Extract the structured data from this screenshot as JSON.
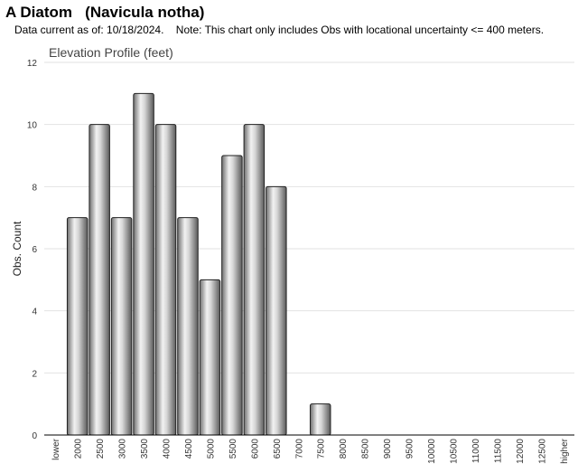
{
  "header": {
    "title": "A Diatom   (Navicula notha)",
    "subtitle": "Data current as of: 10/18/2024.    Note: This chart only includes Obs with locational uncertainty <= 400 meters."
  },
  "chart_data": {
    "type": "bar",
    "title": "Elevation Profile (feet)",
    "xlabel": "",
    "ylabel": "Obs. Count",
    "ylim": [
      0,
      12
    ],
    "yticks": [
      0,
      2,
      4,
      6,
      8,
      10,
      12
    ],
    "grid": true,
    "categories": [
      "lower",
      "2000",
      "2500",
      "3000",
      "3500",
      "4000",
      "4500",
      "5000",
      "5500",
      "6000",
      "6500",
      "7000",
      "7500",
      "8000",
      "8500",
      "9000",
      "9500",
      "10000",
      "10500",
      "11000",
      "11500",
      "12000",
      "12500",
      "higher"
    ],
    "values": [
      0,
      7,
      10,
      7,
      11,
      10,
      7,
      5,
      9,
      10,
      8,
      0,
      1,
      0,
      0,
      0,
      0,
      0,
      0,
      0,
      0,
      0,
      0,
      0
    ],
    "bar_color": "#a9a9a9"
  }
}
